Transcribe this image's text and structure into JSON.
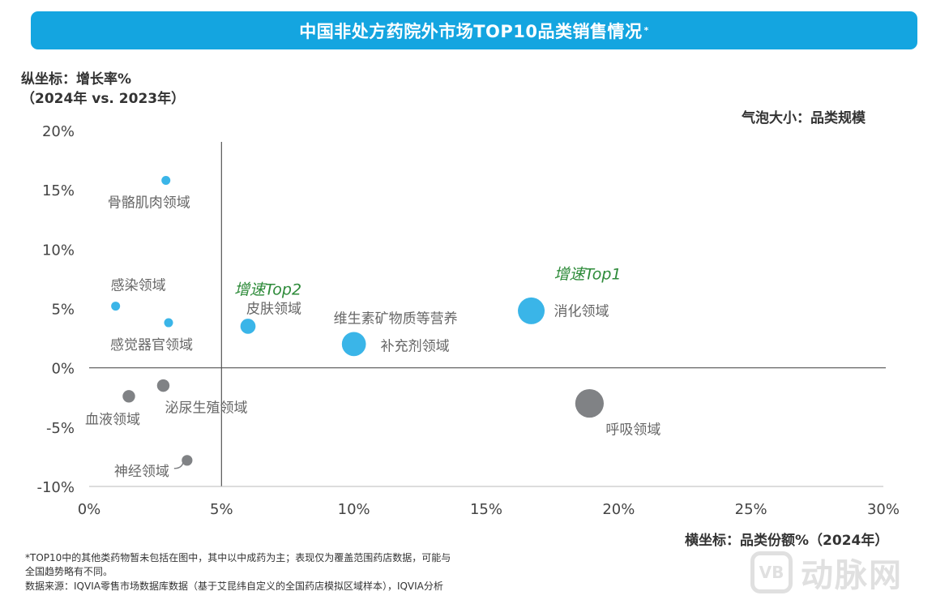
{
  "header": {
    "title": "中国非处方药院外市场TOP10品类销售情况",
    "title_mark": "*"
  },
  "yaxis_title_line1": "纵坐标：增长率%",
  "yaxis_title_line2": "（2024年 vs. 2023年）",
  "size_note": "气泡大小：品类规模",
  "xaxis_title": "横坐标：品类份额%（2024年）",
  "footnote1": "*TOP10中的其他类药物暂未包括在图中，其中以中成药为主；表现仅为覆盖范围药店数据，可能与",
  "footnote2": "全国趋势略有不同。",
  "source": "数据来源：IQVIA零售市场数据库数据（基于艾昆纬自定义的全国药店模拟区域样本），IQVIA分析",
  "watermark": {
    "logo": "VB",
    "text": "动脉网"
  },
  "colors": {
    "banner": "#14a5e0",
    "blue": "#3ab5e8",
    "grey": "#808285",
    "green": "#2e8b3a"
  },
  "chart_data": {
    "type": "scatter",
    "title": "中国非处方药院外市场TOP10品类销售情况",
    "xlabel": "横坐标：品类份额%（2024年）",
    "ylabel": "纵坐标：增长率%（2024年 vs. 2023年）",
    "xlim": [
      0,
      30
    ],
    "ylim": [
      -10,
      20
    ],
    "xticks": [
      0,
      5,
      10,
      15,
      20,
      25,
      30
    ],
    "xtick_labels": [
      "0%",
      "5%",
      "10%",
      "15%",
      "20%",
      "25%",
      "30%"
    ],
    "yticks": [
      20,
      15,
      10,
      5,
      0,
      -5,
      -10
    ],
    "ytick_labels": [
      "20%",
      "15%",
      "10%",
      "5%",
      "0%",
      "-5%",
      "-10%"
    ],
    "reference_lines": {
      "x": 5,
      "y": 0
    },
    "grid": false,
    "points": [
      {
        "label": "骨骼肌肉领域",
        "x": 2.9,
        "y": 15.8,
        "size": 1.0,
        "color": "blue",
        "label_pos": "below"
      },
      {
        "label": "感染领域",
        "x": 1.0,
        "y": 5.2,
        "size": 1.0,
        "color": "blue",
        "label_pos": "above"
      },
      {
        "label": "感觉器官领域",
        "x": 3.0,
        "y": 3.8,
        "size": 1.0,
        "color": "blue",
        "label_pos": "below"
      },
      {
        "label": "皮肤领域",
        "x": 6.0,
        "y": 3.5,
        "size": 1.7,
        "color": "blue",
        "label_pos": "above-right",
        "tag": "增速Top2"
      },
      {
        "label": "维生素矿物质等营养补充剂领域",
        "x": 10.0,
        "y": 2.0,
        "size": 2.7,
        "color": "blue",
        "label_pos": "split"
      },
      {
        "label": "消化领域",
        "x": 16.7,
        "y": 4.8,
        "size": 3.0,
        "color": "blue",
        "label_pos": "right",
        "tag": "增速Top1"
      },
      {
        "label": "血液领域",
        "x": 1.5,
        "y": -2.4,
        "size": 1.4,
        "color": "grey",
        "label_pos": "below-left"
      },
      {
        "label": "泌尿生殖领域",
        "x": 2.8,
        "y": -1.5,
        "size": 1.4,
        "color": "grey",
        "label_pos": "below-right"
      },
      {
        "label": "神经领域",
        "x": 3.7,
        "y": -7.8,
        "size": 1.2,
        "color": "grey",
        "label_pos": "left"
      },
      {
        "label": "呼吸领域",
        "x": 18.9,
        "y": -3.0,
        "size": 3.2,
        "color": "grey",
        "label_pos": "below-right"
      }
    ]
  }
}
